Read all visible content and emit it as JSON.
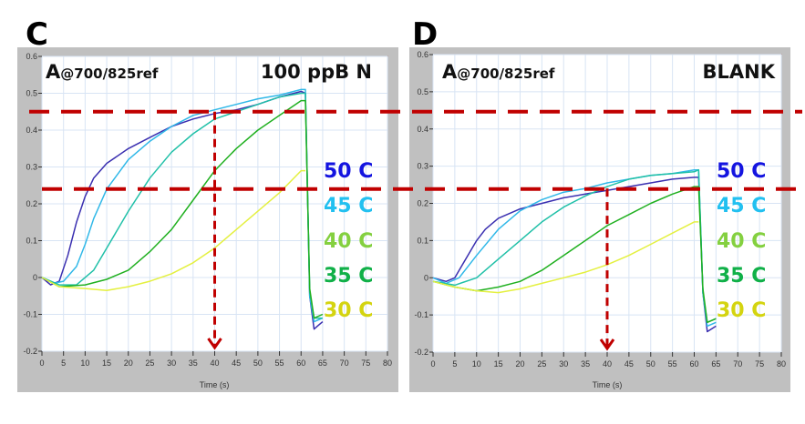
{
  "chart_data": [
    {
      "type": "line",
      "panel_label": "C",
      "title": "A@700/825ref",
      "title_prefix": "A",
      "title_suffix": "@700/825ref",
      "condition": "100 ppB N",
      "xlabel": "Time (s)",
      "ylabel": "",
      "xlim": [
        0,
        80
      ],
      "ylim": [
        -0.2,
        0.6
      ],
      "xticks": [
        0,
        5,
        10,
        15,
        20,
        25,
        30,
        35,
        40,
        45,
        50,
        55,
        60,
        65,
        70,
        75,
        80
      ],
      "yticks": [
        -0.2,
        -0.1,
        0,
        0.1,
        0.2,
        0.3,
        0.4,
        0.5,
        0.6
      ],
      "grid": true,
      "reference_lines": {
        "horizontal": [
          0.45,
          0.24
        ],
        "vertical_arrow_x": 40
      },
      "series": [
        {
          "name": "50 C",
          "line_color": "#3a2fb0",
          "label_color": "#1414e0",
          "x": [
            0,
            2,
            4,
            6,
            8,
            10,
            12,
            15,
            20,
            25,
            30,
            35,
            40,
            45,
            50,
            55,
            60,
            61,
            62,
            63,
            64,
            65
          ],
          "y": [
            0,
            -0.02,
            -0.01,
            0.06,
            0.15,
            0.22,
            0.27,
            0.31,
            0.35,
            0.38,
            0.41,
            0.43,
            0.445,
            0.455,
            0.47,
            0.49,
            0.505,
            0.5,
            -0.05,
            -0.14,
            -0.13,
            -0.12
          ]
        },
        {
          "name": "45 C",
          "line_color": "#30b8e8",
          "label_color": "#22c0f0",
          "x": [
            0,
            3,
            5,
            8,
            10,
            12,
            15,
            20,
            25,
            30,
            35,
            40,
            45,
            50,
            55,
            60,
            61,
            62,
            63,
            65
          ],
          "y": [
            0,
            -0.015,
            -0.01,
            0.03,
            0.09,
            0.16,
            0.24,
            0.32,
            0.37,
            0.41,
            0.44,
            0.455,
            0.47,
            0.485,
            0.495,
            0.51,
            0.51,
            -0.05,
            -0.12,
            -0.11
          ]
        },
        {
          "name": "40 C",
          "line_color": "#20c0a8",
          "label_color": "#84d040",
          "x": [
            0,
            4,
            8,
            12,
            15,
            20,
            25,
            30,
            35,
            40,
            45,
            50,
            55,
            60,
            61,
            62,
            63,
            65
          ],
          "y": [
            0,
            -0.02,
            -0.02,
            0.02,
            0.08,
            0.18,
            0.27,
            0.34,
            0.39,
            0.43,
            0.45,
            0.47,
            0.49,
            0.5,
            0.5,
            -0.04,
            -0.11,
            -0.11
          ]
        },
        {
          "name": "35 C",
          "line_color": "#20b020",
          "label_color": "#10b048",
          "x": [
            0,
            4,
            10,
            15,
            20,
            25,
            30,
            35,
            40,
            45,
            50,
            55,
            60,
            61,
            62,
            63,
            65
          ],
          "y": [
            0,
            -0.025,
            -0.02,
            -0.005,
            0.02,
            0.07,
            0.13,
            0.21,
            0.29,
            0.35,
            0.4,
            0.44,
            0.48,
            0.48,
            -0.03,
            -0.11,
            -0.1
          ]
        },
        {
          "name": "30 C",
          "line_color": "#e4f040",
          "label_color": "#d4d410",
          "x": [
            0,
            4,
            10,
            15,
            20,
            25,
            30,
            35,
            40,
            45,
            50,
            55,
            60,
            61
          ],
          "y": [
            0,
            -0.025,
            -0.03,
            -0.035,
            -0.025,
            -0.01,
            0.01,
            0.04,
            0.08,
            0.13,
            0.18,
            0.23,
            0.29,
            0.29
          ]
        }
      ]
    },
    {
      "type": "line",
      "panel_label": "D",
      "title": "A@700/825ref",
      "title_prefix": "A",
      "title_suffix": "@700/825ref",
      "condition": "BLANK",
      "xlabel": "Time (s)",
      "ylabel": "",
      "xlim": [
        0,
        80
      ],
      "ylim": [
        -0.2,
        0.6
      ],
      "xticks": [
        0,
        5,
        10,
        15,
        20,
        25,
        30,
        35,
        40,
        45,
        50,
        55,
        60,
        65,
        70,
        75,
        80
      ],
      "yticks": [
        -0.2,
        -0.1,
        0,
        0.1,
        0.2,
        0.3,
        0.4,
        0.5,
        0.6
      ],
      "grid": true,
      "reference_lines": {
        "horizontal": [
          0.45,
          0.24
        ],
        "vertical_arrow_x": 40
      },
      "series": [
        {
          "name": "50 C",
          "line_color": "#3a2fb0",
          "label_color": "#1414e0",
          "x": [
            0,
            3,
            5,
            8,
            10,
            12,
            15,
            20,
            25,
            30,
            35,
            40,
            45,
            50,
            55,
            60,
            61,
            62,
            63,
            65
          ],
          "y": [
            0,
            -0.01,
            0,
            0.06,
            0.1,
            0.13,
            0.16,
            0.185,
            0.2,
            0.215,
            0.225,
            0.235,
            0.245,
            0.255,
            0.265,
            0.27,
            0.27,
            -0.04,
            -0.145,
            -0.13
          ]
        },
        {
          "name": "45 C",
          "line_color": "#30b8e8",
          "label_color": "#22c0f0",
          "x": [
            0,
            3,
            6,
            10,
            15,
            20,
            25,
            30,
            35,
            40,
            45,
            50,
            55,
            60,
            61,
            62,
            63,
            65
          ],
          "y": [
            0,
            -0.015,
            0,
            0.06,
            0.13,
            0.18,
            0.21,
            0.23,
            0.24,
            0.255,
            0.265,
            0.275,
            0.28,
            0.29,
            0.29,
            -0.04,
            -0.13,
            -0.12
          ]
        },
        {
          "name": "40 C",
          "line_color": "#20c0a8",
          "label_color": "#84d040",
          "x": [
            0,
            5,
            10,
            15,
            20,
            25,
            30,
            35,
            40,
            45,
            50,
            55,
            60,
            61,
            62,
            63,
            65
          ],
          "y": [
            -0.01,
            -0.02,
            0,
            0.05,
            0.1,
            0.15,
            0.19,
            0.22,
            0.245,
            0.265,
            0.275,
            0.28,
            0.285,
            0.29,
            -0.04,
            -0.12,
            -0.11
          ]
        },
        {
          "name": "35 C",
          "line_color": "#20b020",
          "label_color": "#10b048",
          "x": [
            0,
            5,
            10,
            15,
            20,
            25,
            30,
            35,
            40,
            45,
            50,
            55,
            60,
            61,
            62,
            63,
            65
          ],
          "y": [
            -0.01,
            -0.025,
            -0.035,
            -0.025,
            -0.01,
            0.02,
            0.06,
            0.1,
            0.14,
            0.17,
            0.2,
            0.225,
            0.245,
            0.245,
            -0.03,
            -0.12,
            -0.11
          ]
        },
        {
          "name": "30 C",
          "line_color": "#e4f040",
          "label_color": "#d4d410",
          "x": [
            0,
            5,
            10,
            15,
            20,
            25,
            30,
            35,
            40,
            45,
            50,
            55,
            60,
            61
          ],
          "y": [
            -0.01,
            -0.025,
            -0.035,
            -0.04,
            -0.03,
            -0.015,
            0,
            0.015,
            0.035,
            0.06,
            0.09,
            0.12,
            0.15,
            0.15
          ]
        }
      ]
    }
  ],
  "colors": {
    "reference_line": "#c00000",
    "frame": "#c0c0c0",
    "grid": "#d8e4f4",
    "plot_border": "#c06060"
  }
}
